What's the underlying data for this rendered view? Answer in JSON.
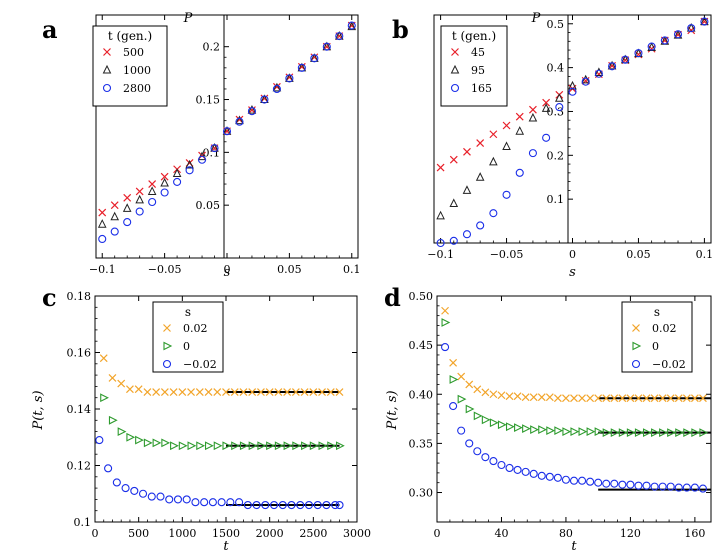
{
  "chart_data": [
    {
      "id": "a",
      "panel_label": "a",
      "type": "scatter",
      "xlabel": "s",
      "ylabel": "P",
      "xlim": [
        -0.105,
        0.105
      ],
      "ylim": [
        0.0,
        0.23
      ],
      "xticks": [
        -0.1,
        -0.05,
        0,
        0.05,
        0.1
      ],
      "xtick_labels": [
        "−0.1",
        "−0.05",
        "0",
        "0.05",
        "0.1"
      ],
      "yticks": [
        0.05,
        0.1,
        0.15,
        0.2
      ],
      "ytick_labels": [
        "0.05",
        "0.1",
        "0.15",
        "0.2"
      ],
      "legend": {
        "title": "t (gen.)",
        "position": "top-left"
      },
      "series": [
        {
          "name": "500",
          "marker": "x",
          "color": "#e8202a",
          "x": [
            -0.1,
            -0.09,
            -0.08,
            -0.07,
            -0.06,
            -0.05,
            -0.04,
            -0.03,
            -0.02,
            -0.01,
            0,
            0.01,
            0.02,
            0.03,
            0.04,
            0.05,
            0.06,
            0.07,
            0.08,
            0.09,
            0.1
          ],
          "y": [
            0.043,
            0.05,
            0.057,
            0.063,
            0.07,
            0.077,
            0.084,
            0.09,
            0.097,
            0.104,
            0.12,
            0.131,
            0.14,
            0.151,
            0.162,
            0.171,
            0.181,
            0.19,
            0.2,
            0.21,
            0.22
          ]
        },
        {
          "name": "1000",
          "marker": "triangle",
          "color": "#222222",
          "x": [
            -0.1,
            -0.09,
            -0.08,
            -0.07,
            -0.06,
            -0.05,
            -0.04,
            -0.03,
            -0.02,
            -0.01,
            0,
            0.01,
            0.02,
            0.03,
            0.04,
            0.05,
            0.06,
            0.07,
            0.08,
            0.09,
            0.1
          ],
          "y": [
            0.032,
            0.039,
            0.047,
            0.055,
            0.063,
            0.071,
            0.08,
            0.088,
            0.096,
            0.104,
            0.12,
            0.13,
            0.14,
            0.15,
            0.161,
            0.17,
            0.18,
            0.189,
            0.2,
            0.21,
            0.219
          ]
        },
        {
          "name": "2800",
          "marker": "circle",
          "color": "#1a2ee8",
          "x": [
            -0.1,
            -0.09,
            -0.08,
            -0.07,
            -0.06,
            -0.05,
            -0.04,
            -0.03,
            -0.02,
            -0.01,
            0,
            0.01,
            0.02,
            0.03,
            0.04,
            0.05,
            0.06,
            0.07,
            0.08,
            0.09,
            0.1
          ],
          "y": [
            0.018,
            0.025,
            0.034,
            0.044,
            0.053,
            0.062,
            0.072,
            0.083,
            0.093,
            0.104,
            0.12,
            0.129,
            0.139,
            0.15,
            0.16,
            0.17,
            0.18,
            0.189,
            0.2,
            0.21,
            0.22
          ]
        }
      ]
    },
    {
      "id": "b",
      "panel_label": "b",
      "type": "scatter",
      "xlabel": "s",
      "ylabel": "P",
      "xlim": [
        -0.105,
        0.105
      ],
      "ylim": [
        0.0,
        0.52
      ],
      "xticks": [
        -0.1,
        -0.05,
        0,
        0.05,
        0.1
      ],
      "xtick_labels": [
        "−0.1",
        "−0.05",
        "0",
        "0.05",
        "0.1"
      ],
      "yticks": [
        0.1,
        0.2,
        0.3,
        0.4,
        0.5
      ],
      "ytick_labels": [
        "0.1",
        "0.2",
        "0.3",
        "0.4",
        "0.5"
      ],
      "legend": {
        "title": "t (gen.)",
        "position": "top-left"
      },
      "series": [
        {
          "name": "45",
          "marker": "x",
          "color": "#e8202a",
          "x": [
            -0.1,
            -0.09,
            -0.08,
            -0.07,
            -0.06,
            -0.05,
            -0.04,
            -0.03,
            -0.02,
            -0.01,
            0,
            0.01,
            0.02,
            0.03,
            0.04,
            0.05,
            0.06,
            0.07,
            0.08,
            0.09,
            0.1
          ],
          "y": [
            0.172,
            0.19,
            0.208,
            0.228,
            0.248,
            0.268,
            0.288,
            0.304,
            0.32,
            0.338,
            0.352,
            0.37,
            0.385,
            0.404,
            0.417,
            0.43,
            0.443,
            0.462,
            0.475,
            0.485,
            0.505
          ]
        },
        {
          "name": "95",
          "marker": "triangle",
          "color": "#222222",
          "x": [
            -0.1,
            -0.09,
            -0.08,
            -0.07,
            -0.06,
            -0.05,
            -0.04,
            -0.03,
            -0.02,
            -0.01,
            0,
            0.01,
            0.02,
            0.03,
            0.04,
            0.05,
            0.06,
            0.07,
            0.08,
            0.09,
            0.1
          ],
          "y": [
            0.062,
            0.09,
            0.12,
            0.15,
            0.185,
            0.22,
            0.255,
            0.285,
            0.307,
            0.33,
            0.358,
            0.372,
            0.389,
            0.404,
            0.418,
            0.432,
            0.446,
            0.46,
            0.474,
            0.49,
            0.505
          ]
        },
        {
          "name": "165",
          "marker": "circle",
          "color": "#1a2ee8",
          "x": [
            -0.1,
            -0.09,
            -0.08,
            -0.07,
            -0.06,
            -0.05,
            -0.04,
            -0.03,
            -0.02,
            -0.01,
            0,
            0.01,
            0.02,
            0.03,
            0.04,
            0.05,
            0.06,
            0.07,
            0.08,
            0.09,
            0.1
          ],
          "y": [
            0.0,
            0.005,
            0.02,
            0.04,
            0.068,
            0.11,
            0.16,
            0.205,
            0.24,
            0.31,
            0.345,
            0.368,
            0.386,
            0.403,
            0.418,
            0.433,
            0.448,
            0.462,
            0.476,
            0.49,
            0.505
          ]
        }
      ]
    },
    {
      "id": "c",
      "panel_label": "c",
      "type": "scatter",
      "xlabel": "t",
      "ylabel": "P(t, s)",
      "xlim": [
        0,
        3000
      ],
      "ylim": [
        0.1,
        0.18
      ],
      "xticks": [
        0,
        500,
        1000,
        1500,
        2000,
        2500,
        3000
      ],
      "xtick_labels": [
        "0",
        "500",
        "1000",
        "1500",
        "2000",
        "2500",
        "3000"
      ],
      "yticks": [
        0.1,
        0.12,
        0.14,
        0.16,
        0.18
      ],
      "ytick_labels": [
        "0.1",
        "0.12",
        "0.14",
        "0.16",
        "0.18"
      ],
      "legend": {
        "title": "s",
        "position": "top-center"
      },
      "series": [
        {
          "name": "0.02",
          "marker": "x",
          "color": "#f2a52b",
          "x": [
            100,
            200,
            300,
            400,
            500,
            600,
            700,
            800,
            900,
            1000,
            1100,
            1200,
            1300,
            1400,
            1500,
            1600,
            1700,
            1800,
            1900,
            2000,
            2100,
            2200,
            2300,
            2400,
            2500,
            2600,
            2700,
            2800
          ],
          "y": [
            0.158,
            0.151,
            0.149,
            0.147,
            0.147,
            0.146,
            0.146,
            0.146,
            0.146,
            0.146,
            0.146,
            0.146,
            0.146,
            0.146,
            0.146,
            0.146,
            0.146,
            0.146,
            0.146,
            0.146,
            0.146,
            0.146,
            0.146,
            0.146,
            0.146,
            0.146,
            0.146,
            0.146
          ],
          "fit": {
            "x": [
              1500,
              2800
            ],
            "y": 0.146
          }
        },
        {
          "name": "0",
          "marker": "triangle-right",
          "color": "#2e9b2e",
          "x": [
            100,
            200,
            300,
            400,
            500,
            600,
            700,
            800,
            900,
            1000,
            1100,
            1200,
            1300,
            1400,
            1500,
            1600,
            1700,
            1800,
            1900,
            2000,
            2100,
            2200,
            2300,
            2400,
            2500,
            2600,
            2700,
            2800
          ],
          "y": [
            0.144,
            0.136,
            0.132,
            0.13,
            0.129,
            0.128,
            0.128,
            0.128,
            0.127,
            0.127,
            0.127,
            0.127,
            0.127,
            0.127,
            0.127,
            0.127,
            0.127,
            0.127,
            0.127,
            0.127,
            0.127,
            0.127,
            0.127,
            0.127,
            0.127,
            0.127,
            0.127,
            0.127
          ],
          "fit": {
            "x": [
              1500,
              2800
            ],
            "y": 0.127
          }
        },
        {
          "name": "−0.02",
          "marker": "circle",
          "color": "#1a2ee8",
          "x": [
            50,
            150,
            250,
            350,
            450,
            550,
            650,
            750,
            850,
            950,
            1050,
            1150,
            1250,
            1350,
            1450,
            1550,
            1650,
            1750,
            1850,
            1950,
            2050,
            2150,
            2250,
            2350,
            2450,
            2550,
            2650,
            2750,
            2800
          ],
          "y": [
            0.129,
            0.119,
            0.114,
            0.112,
            0.111,
            0.11,
            0.109,
            0.109,
            0.108,
            0.108,
            0.108,
            0.107,
            0.107,
            0.107,
            0.107,
            0.107,
            0.107,
            0.106,
            0.106,
            0.106,
            0.106,
            0.106,
            0.106,
            0.106,
            0.106,
            0.106,
            0.106,
            0.106,
            0.106
          ],
          "fit": {
            "x": [
              1500,
              2800
            ],
            "y": 0.106
          }
        }
      ]
    },
    {
      "id": "d",
      "panel_label": "d",
      "type": "scatter",
      "xlabel": "t",
      "ylabel": "P(t, s)",
      "xlim": [
        0,
        170
      ],
      "ylim": [
        0.27,
        0.5
      ],
      "xticks": [
        0,
        40,
        80,
        120,
        160
      ],
      "xtick_labels": [
        "0",
        "40",
        "80",
        "120",
        "160"
      ],
      "yticks": [
        0.3,
        0.35,
        0.4,
        0.45,
        0.5
      ],
      "ytick_labels": [
        "0.30",
        "0.35",
        "0.40",
        "0.45",
        "0.50"
      ],
      "legend": {
        "title": "s",
        "position": "top-right"
      },
      "series": [
        {
          "name": "0.02",
          "marker": "x",
          "color": "#f2a52b",
          "x": [
            5,
            10,
            15,
            20,
            25,
            30,
            35,
            40,
            45,
            50,
            55,
            60,
            65,
            70,
            75,
            80,
            85,
            90,
            95,
            100,
            105,
            110,
            115,
            120,
            125,
            130,
            135,
            140,
            145,
            150,
            155,
            160,
            165
          ],
          "y": [
            0.485,
            0.432,
            0.418,
            0.41,
            0.405,
            0.402,
            0.4,
            0.399,
            0.398,
            0.398,
            0.397,
            0.397,
            0.397,
            0.397,
            0.396,
            0.396,
            0.396,
            0.396,
            0.396,
            0.396,
            0.396,
            0.396,
            0.396,
            0.396,
            0.396,
            0.396,
            0.396,
            0.396,
            0.396,
            0.396,
            0.396,
            0.396,
            0.396
          ],
          "fit": {
            "x": [
              100,
              170
            ],
            "y": 0.396
          }
        },
        {
          "name": "0",
          "marker": "triangle-right",
          "color": "#2e9b2e",
          "x": [
            5,
            10,
            15,
            20,
            25,
            30,
            35,
            40,
            45,
            50,
            55,
            60,
            65,
            70,
            75,
            80,
            85,
            90,
            95,
            100,
            105,
            110,
            115,
            120,
            125,
            130,
            135,
            140,
            145,
            150,
            155,
            160,
            165
          ],
          "y": [
            0.473,
            0.415,
            0.395,
            0.385,
            0.378,
            0.374,
            0.371,
            0.369,
            0.367,
            0.366,
            0.365,
            0.364,
            0.364,
            0.363,
            0.363,
            0.362,
            0.362,
            0.362,
            0.362,
            0.362,
            0.361,
            0.361,
            0.361,
            0.361,
            0.361,
            0.361,
            0.361,
            0.361,
            0.361,
            0.361,
            0.361,
            0.361,
            0.361
          ],
          "fit": {
            "x": [
              100,
              170
            ],
            "y": 0.361
          }
        },
        {
          "name": "−0.02",
          "marker": "circle",
          "color": "#1a2ee8",
          "x": [
            5,
            10,
            15,
            20,
            25,
            30,
            35,
            40,
            45,
            50,
            55,
            60,
            65,
            70,
            75,
            80,
            85,
            90,
            95,
            100,
            105,
            110,
            115,
            120,
            125,
            130,
            135,
            140,
            145,
            150,
            155,
            160,
            165
          ],
          "y": [
            0.448,
            0.388,
            0.363,
            0.35,
            0.342,
            0.336,
            0.332,
            0.328,
            0.325,
            0.323,
            0.321,
            0.319,
            0.317,
            0.316,
            0.315,
            0.313,
            0.312,
            0.312,
            0.311,
            0.31,
            0.309,
            0.309,
            0.308,
            0.308,
            0.307,
            0.307,
            0.306,
            0.306,
            0.306,
            0.305,
            0.305,
            0.305,
            0.304
          ],
          "fit": {
            "x": [
              100,
              170
            ],
            "y": 0.303
          }
        }
      ]
    }
  ]
}
